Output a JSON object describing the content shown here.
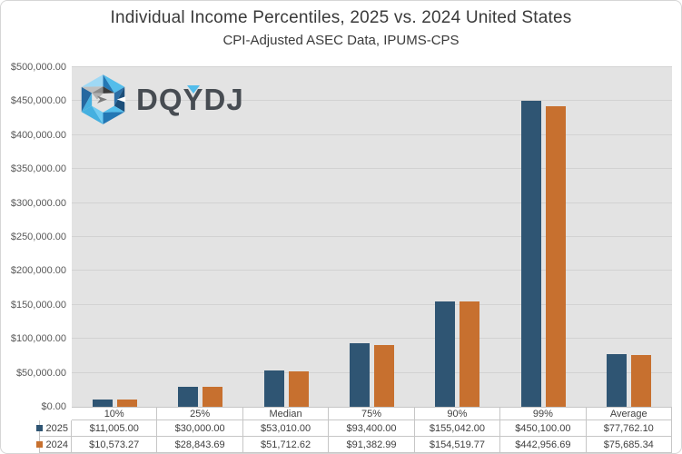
{
  "chart_data": {
    "type": "bar",
    "title": "Individual Income Percentiles, 2025 vs. 2024 United States",
    "subtitle": "CPI-Adjusted ASEC Data, IPUMS-CPS",
    "categories": [
      "10%",
      "25%",
      "Median",
      "75%",
      "90%",
      "99%",
      "Average"
    ],
    "series": [
      {
        "name": "2025",
        "color": "#2f5573",
        "values": [
          11005.0,
          30000.0,
          53010.0,
          93400.0,
          155042.0,
          450100.0,
          77762.1
        ],
        "labels": [
          "$11,005.00",
          "$30,000.00",
          "$53,010.00",
          "$93,400.00",
          "$155,042.00",
          "$450,100.00",
          "$77,762.10"
        ]
      },
      {
        "name": "2024",
        "color": "#c7702f",
        "values": [
          10573.27,
          28843.69,
          51712.62,
          91382.99,
          154519.77,
          442956.69,
          75685.34
        ],
        "labels": [
          "$10,573.27",
          "$28,843.69",
          "$51,712.62",
          "$91,382.99",
          "$154,519.77",
          "$442,956.69",
          "$75,685.34"
        ]
      }
    ],
    "ylim": [
      0,
      500000
    ],
    "y_tick_step": 50000,
    "y_tick_labels": [
      "$0.00",
      "$50,000.00",
      "$100,000.00",
      "$150,000.00",
      "$200,000.00",
      "$250,000.00",
      "$300,000.00",
      "$350,000.00",
      "$400,000.00",
      "$450,000.00",
      "$500,000.00"
    ],
    "grid": true,
    "legend_position": "data-table-left",
    "plot_background": "#e3e3e3"
  },
  "logo": {
    "text": "DQYDJ"
  },
  "colors": {
    "series_2025": "#2f5573",
    "series_2024": "#c7702f",
    "plot_background": "#e3e3e3",
    "gridline": "#d2d2d2",
    "table_border": "#c6c6c6",
    "text_dark": "#3a3a3a",
    "axis_text": "#595959",
    "logo_cyan": "#53bdeb",
    "logo_blue": "#2377b4",
    "logo_navy": "#1c4e79"
  }
}
